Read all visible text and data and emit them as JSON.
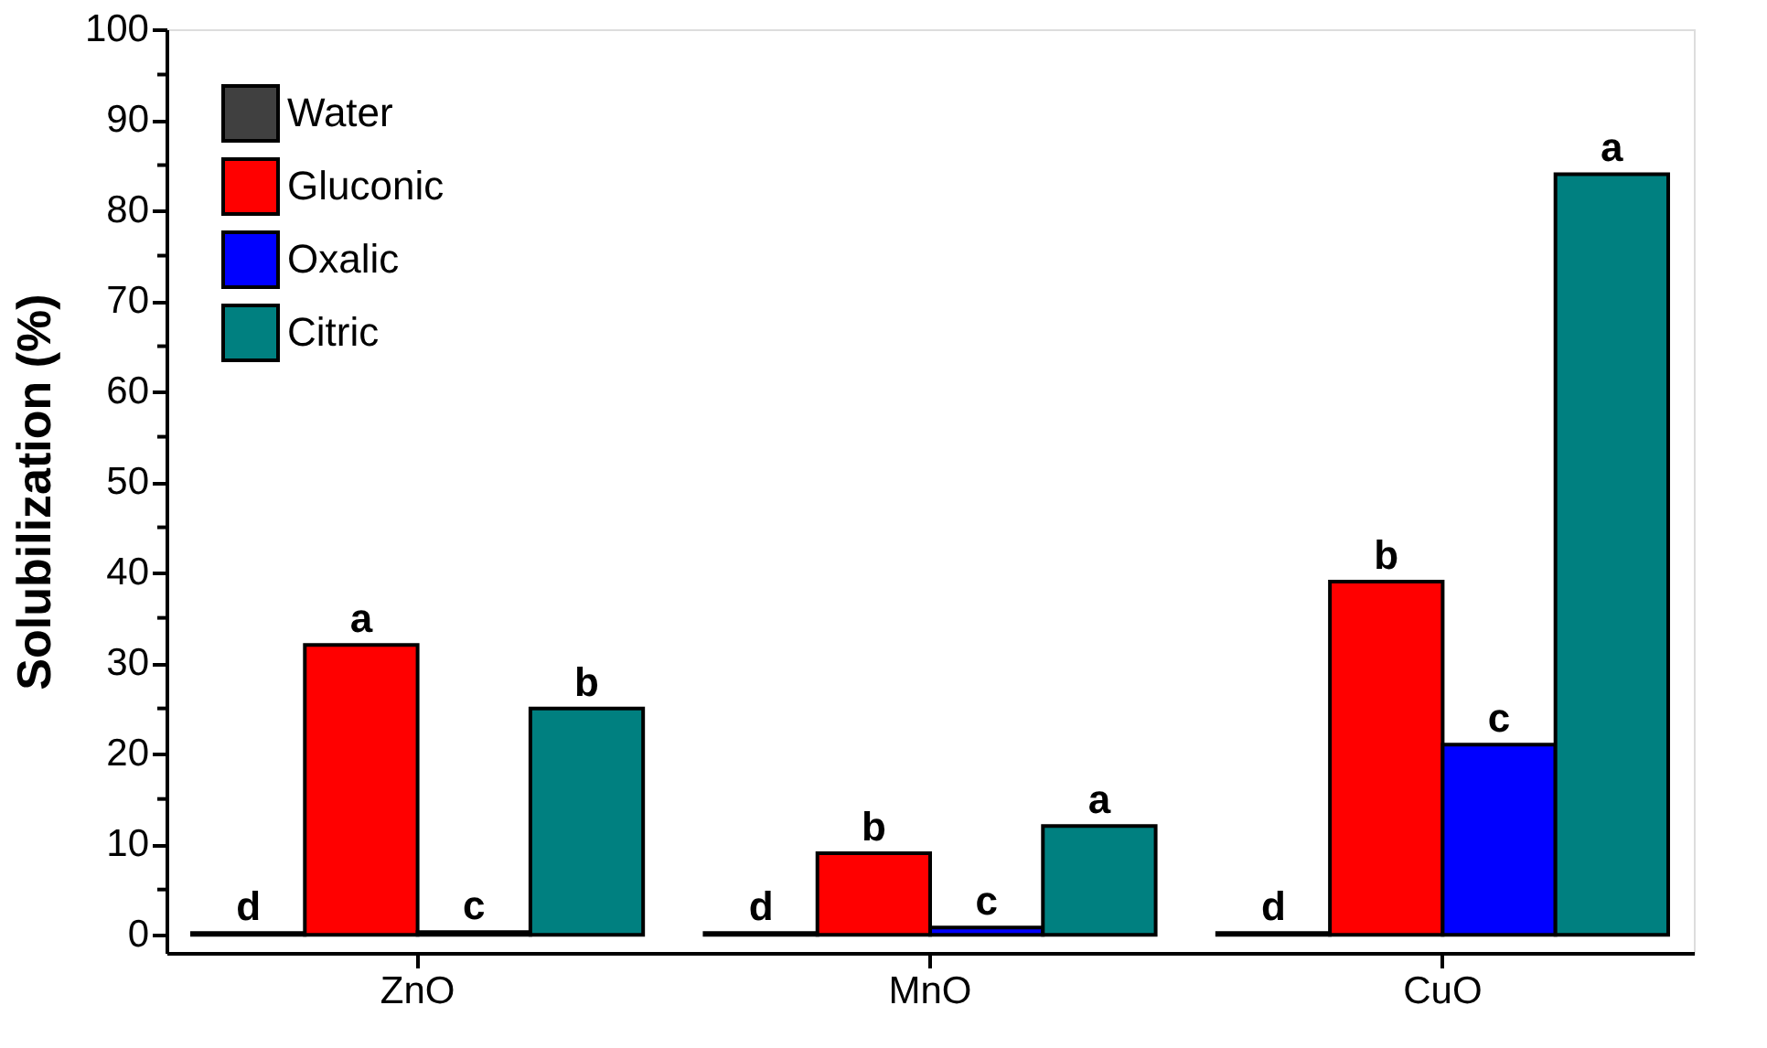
{
  "chart_data": {
    "type": "bar",
    "ylabel": "Solubilization (%)",
    "categories": [
      "ZnO",
      "MnO",
      "CuO"
    ],
    "series": [
      {
        "name": "Water",
        "color": "#404040",
        "values": [
          0.2,
          0.2,
          0.2
        ],
        "value_labels": [
          "d",
          "d",
          "d"
        ]
      },
      {
        "name": "Gluconic",
        "color": "#ff0000",
        "values": [
          32,
          9,
          39
        ],
        "value_labels": [
          "a",
          "b",
          "b"
        ]
      },
      {
        "name": "Oxalic",
        "color": "#0000ff",
        "values": [
          0.3,
          0.8,
          21
        ],
        "value_labels": [
          "c",
          "c",
          "c"
        ]
      },
      {
        "name": "Citric",
        "color": "#008080",
        "values": [
          25,
          12,
          84
        ],
        "value_labels": [
          "b",
          "a",
          "a"
        ]
      }
    ],
    "ylim": [
      -2,
      100
    ],
    "yticks": [
      0,
      {
        "value": 5,
        "label": null
      },
      10,
      {
        "value": 15,
        "label": null
      },
      20,
      {
        "value": 25,
        "label": null
      },
      30,
      {
        "value": 35,
        "label": null
      },
      40,
      {
        "value": 45,
        "label": null
      },
      50,
      {
        "value": 55,
        "label": null
      },
      60,
      {
        "value": 65,
        "label": null
      },
      70,
      {
        "value": 75,
        "label": null
      },
      80,
      {
        "value": 85,
        "label": null
      },
      90,
      {
        "value": 95,
        "label": null
      },
      100
    ],
    "grid": false,
    "legend": "top left"
  }
}
